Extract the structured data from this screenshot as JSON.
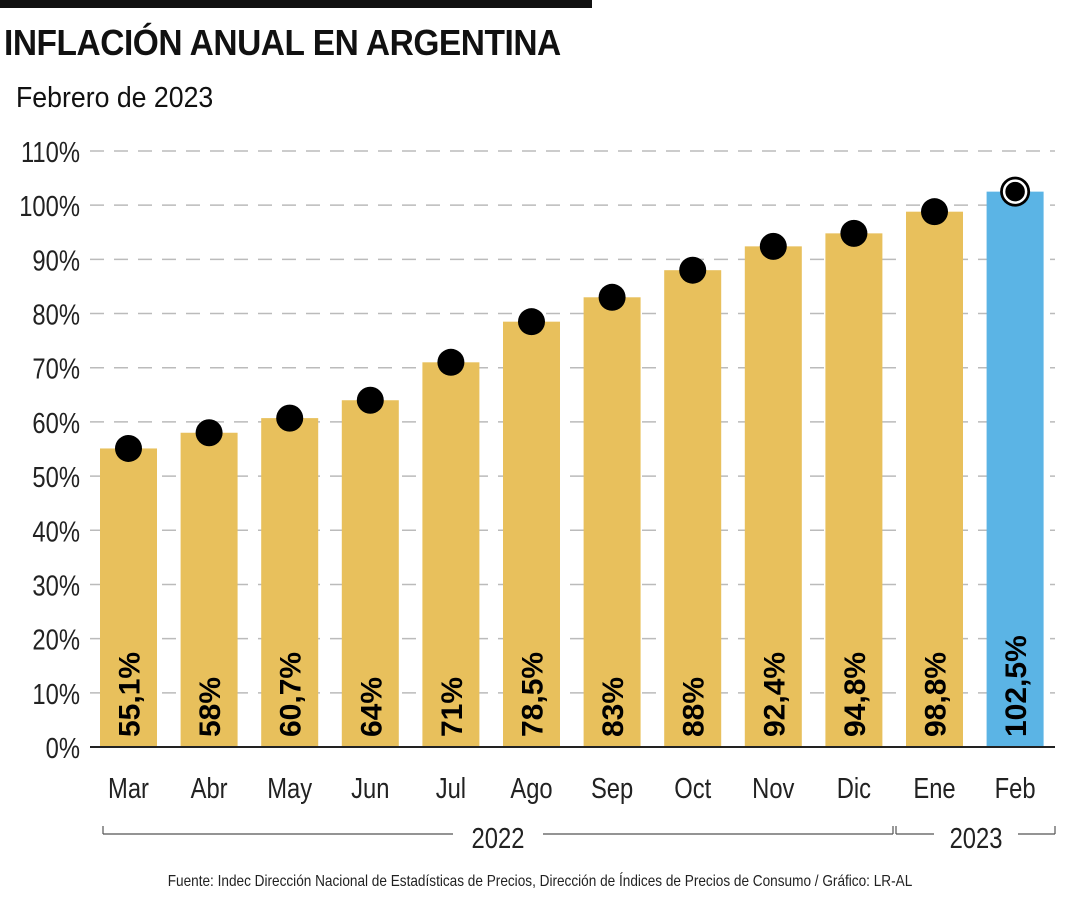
{
  "header": {
    "title": "INFLACIÓN ANUAL EN ARGENTINA",
    "subtitle": "Febrero de 2023"
  },
  "footer": {
    "source": "Fuente: Indec Dirección Nacional de Estadísticas de Precios, Dirección de Índices de Precios de Consumo / Gráfico: LR-AL"
  },
  "colors": {
    "bar": "#E8C05C",
    "highlight_bar": "#5BB4E5",
    "dot": "#000000",
    "grid": "#BBBBBB",
    "axis": "#222222"
  },
  "chart_data": {
    "type": "bar",
    "title": "INFLACIÓN ANUAL EN ARGENTINA",
    "subtitle": "Febrero de 2023",
    "xlabel": "",
    "ylabel": "",
    "categories": [
      "Mar",
      "Abr",
      "May",
      "Jun",
      "Jul",
      "Ago",
      "Sep",
      "Oct",
      "Nov",
      "Dic",
      "Ene",
      "Feb"
    ],
    "values": [
      55.1,
      58,
      60.7,
      64,
      71,
      78.5,
      83,
      88,
      92.4,
      94.8,
      98.8,
      102.5
    ],
    "data_labels": [
      "55,1%",
      "58%",
      "60,7%",
      "64%",
      "71%",
      "78,5%",
      "83%",
      "88%",
      "92,4%",
      "94,8%",
      "98,8%",
      "102,5%"
    ],
    "highlight_index": 11,
    "ylim": [
      0,
      110
    ],
    "yticks": [
      0,
      10,
      20,
      30,
      40,
      50,
      60,
      70,
      80,
      90,
      100,
      110
    ],
    "ytick_labels": [
      "0%",
      "10%",
      "20%",
      "30%",
      "40%",
      "50%",
      "60%",
      "70%",
      "80%",
      "90%",
      "100%",
      "110%"
    ],
    "grid": true,
    "markers": "dot at top of each bar",
    "year_groups": [
      {
        "label": "2022",
        "from": 0,
        "to": 9
      },
      {
        "label": "2023",
        "from": 10,
        "to": 11
      }
    ]
  }
}
